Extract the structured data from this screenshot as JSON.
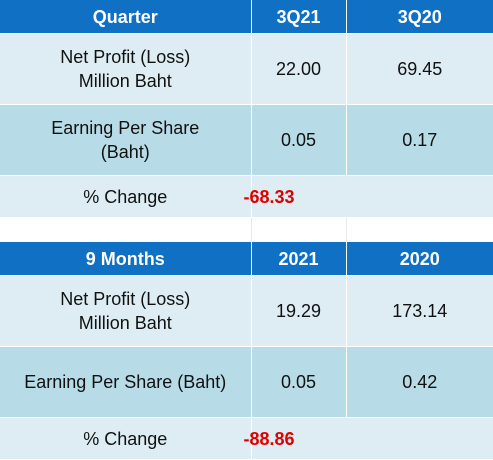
{
  "quarter_table": {
    "headers": [
      "Quarter",
      "3Q21",
      "3Q20"
    ],
    "net_profit": {
      "label_line1": "Net Profit (Loss)",
      "label_line2": "Million Baht",
      "current": "22.00",
      "previous": "69.45"
    },
    "eps": {
      "label_line1": "Earning Per Share",
      "label_line2": "(Baht)",
      "current": "0.05",
      "previous": "0.17"
    },
    "change": {
      "label": "% Change",
      "value": "-68.33"
    }
  },
  "nine_month_table": {
    "headers": [
      "9 Months",
      "2021",
      "2020"
    ],
    "net_profit": {
      "label_line1": "Net Profit (Loss)",
      "label_line2": "Million Baht",
      "current": "19.29",
      "previous": "173.14"
    },
    "eps": {
      "label": "Earning Per Share (Baht)",
      "current": "0.05",
      "previous": "0.42"
    },
    "change": {
      "label": "% Change",
      "value": "-88.86"
    }
  },
  "colors": {
    "header_bg": "#1070c4",
    "row_light": "#ddedf3",
    "row_dark": "#b7dce8",
    "negative": "#e00000"
  }
}
